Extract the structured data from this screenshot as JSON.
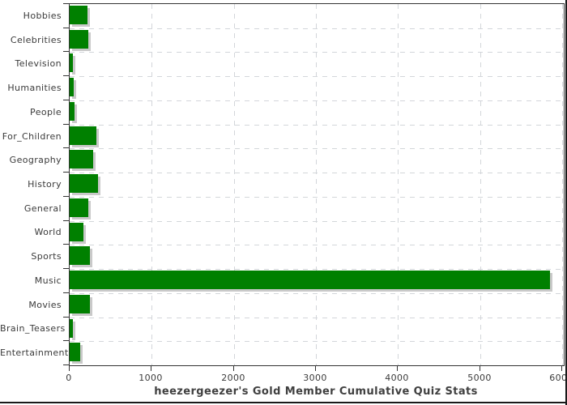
{
  "chart_data": {
    "type": "bar",
    "orientation": "horizontal",
    "title": "heezergeezer's Gold Member Cumulative Quiz Stats",
    "categories": [
      "Hobbies",
      "Celebrities",
      "Television",
      "Humanities",
      "People",
      "For_Children",
      "Geography",
      "History",
      "General",
      "World",
      "Sports",
      "Music",
      "Movies",
      "Brain_Teasers",
      "Entertainment"
    ],
    "values": [
      215,
      230,
      35,
      45,
      55,
      330,
      290,
      345,
      225,
      165,
      250,
      5850,
      250,
      38,
      125
    ],
    "x_tick_labels": [
      "0",
      "1000",
      "2000",
      "3000",
      "4000",
      "5000",
      "6000"
    ],
    "x_tick_values": [
      0,
      1000,
      2000,
      3000,
      4000,
      5000,
      6000
    ],
    "xlim": [
      0,
      6020
    ],
    "grid": "dashed",
    "legend": "none",
    "colors": {
      "bar": "#008000",
      "bar_shadow": "#c9c9c9",
      "axis": "#333333",
      "gridline": "#d3d6da",
      "label": "#3a3a3a",
      "title": "#404040",
      "frame": "#1a1a1a"
    }
  }
}
